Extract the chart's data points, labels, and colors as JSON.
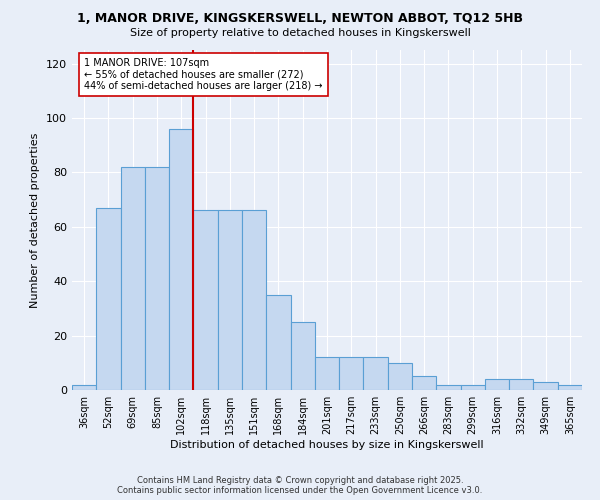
{
  "title": "1, MANOR DRIVE, KINGSKERSWELL, NEWTON ABBOT, TQ12 5HB",
  "subtitle": "Size of property relative to detached houses in Kingskerswell",
  "xlabel": "Distribution of detached houses by size in Kingskerswell",
  "ylabel": "Number of detached properties",
  "categories": [
    "36sqm",
    "52sqm",
    "69sqm",
    "85sqm",
    "102sqm",
    "118sqm",
    "135sqm",
    "151sqm",
    "168sqm",
    "184sqm",
    "201sqm",
    "217sqm",
    "233sqm",
    "250sqm",
    "266sqm",
    "283sqm",
    "299sqm",
    "316sqm",
    "332sqm",
    "349sqm",
    "365sqm"
  ],
  "values": [
    2,
    67,
    82,
    82,
    96,
    66,
    66,
    66,
    35,
    25,
    12,
    12,
    12,
    10,
    5,
    2,
    2,
    4,
    4,
    3,
    2
  ],
  "bar_color": "#c5d8f0",
  "bar_edge_color": "#5a9fd4",
  "reference_line_x": 4.5,
  "reference_line_label": "1 MANOR DRIVE: 107sqm",
  "annotation_line1": "← 55% of detached houses are smaller (272)",
  "annotation_line2": "44% of semi-detached houses are larger (218) →",
  "annotation_box_color": "#ffffff",
  "annotation_box_edge": "#cc0000",
  "ref_line_color": "#cc0000",
  "ylim": [
    0,
    125
  ],
  "yticks": [
    0,
    20,
    40,
    60,
    80,
    100,
    120
  ],
  "background_color": "#e8eef8",
  "grid_color": "#ffffff",
  "footer": "Contains HM Land Registry data © Crown copyright and database right 2025.\nContains public sector information licensed under the Open Government Licence v3.0."
}
